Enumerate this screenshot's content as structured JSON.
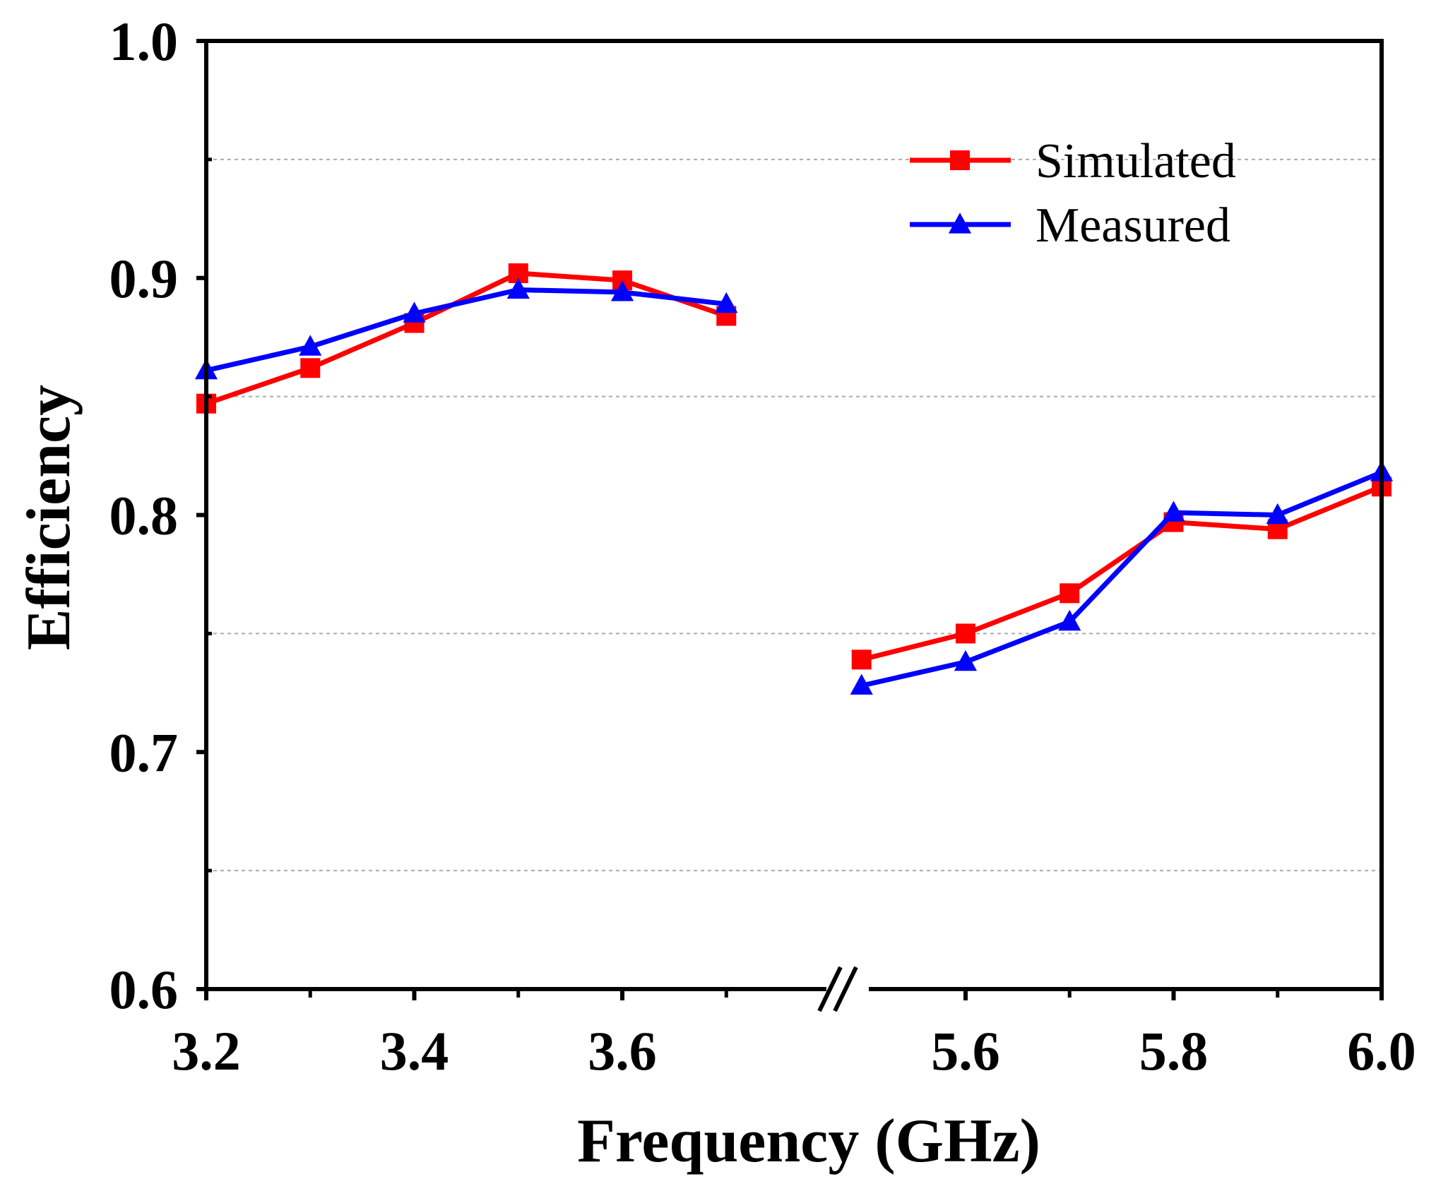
{
  "chart_data": {
    "type": "line",
    "title": "",
    "xlabel": "Frequency (GHz)",
    "ylabel": "Efficiency",
    "ylim": [
      0.6,
      1.0
    ],
    "x_axis_break": {
      "from": 3.7,
      "to": 5.5
    },
    "xlim_segments": [
      [
        3.2,
        3.7
      ],
      [
        5.5,
        6.0
      ]
    ],
    "x_ticks": [
      "3.2",
      "3.4",
      "3.6",
      "5.6",
      "5.8",
      "6.0"
    ],
    "x_tick_values": [
      3.2,
      3.4,
      3.6,
      5.6,
      5.8,
      6.0
    ],
    "x_minor_ticks": [
      3.3,
      3.5,
      3.7,
      5.5,
      5.7,
      5.9
    ],
    "y_ticks": [
      "0.6",
      "0.7",
      "0.8",
      "0.9",
      "1.0"
    ],
    "y_tick_values": [
      0.6,
      0.7,
      0.8,
      0.9,
      1.0
    ],
    "grid": {
      "y": [
        0.65,
        0.75,
        0.85,
        0.95
      ],
      "style": "dashed"
    },
    "legend_position": "top-right",
    "x": [
      3.2,
      3.3,
      3.4,
      3.5,
      3.6,
      3.7,
      5.5,
      5.6,
      5.7,
      5.8,
      5.9,
      6.0
    ],
    "series": [
      {
        "name": "Simulated",
        "color": "#ff0000",
        "marker": "square",
        "values": [
          0.847,
          0.862,
          0.881,
          0.902,
          0.899,
          0.884,
          0.739,
          0.75,
          0.767,
          0.797,
          0.794,
          0.812
        ]
      },
      {
        "name": "Measured",
        "color": "#0000ff",
        "marker": "triangle",
        "values": [
          0.861,
          0.871,
          0.885,
          0.895,
          0.894,
          0.889,
          0.728,
          0.738,
          0.755,
          0.801,
          0.8,
          0.818
        ]
      }
    ]
  }
}
